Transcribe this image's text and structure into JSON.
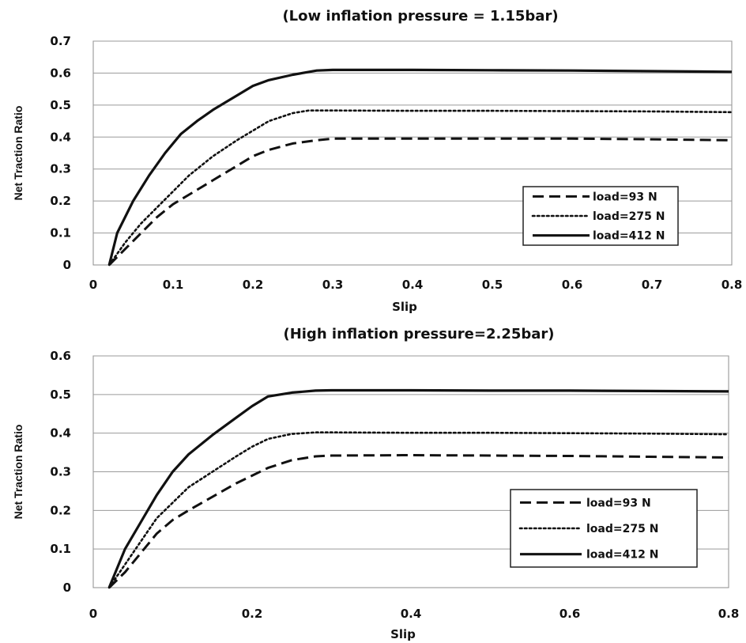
{
  "chart_data": [
    {
      "type": "line",
      "title": "(Low inflation pressure = 1.15bar)",
      "xlabel": "Slip",
      "ylabel": "Net Traction Ratio",
      "xlim": [
        0,
        0.8
      ],
      "ylim": [
        0,
        0.7
      ],
      "xticks": [
        "0",
        "0.1",
        "0.2",
        "0.3",
        "0.4",
        "0.5",
        "0.6",
        "0.7",
        "0.8"
      ],
      "yticks": [
        "0",
        "0.1",
        "0.2",
        "0.3",
        "0.4",
        "0.5",
        "0.6",
        "0.7"
      ],
      "grid": true,
      "legend_position": "bottom-right",
      "series": [
        {
          "name": "load=93 N",
          "style": "dashed",
          "x": [
            0.02,
            0.04,
            0.06,
            0.08,
            0.1,
            0.12,
            0.15,
            0.18,
            0.2,
            0.22,
            0.25,
            0.28,
            0.3,
            0.4,
            0.5,
            0.6,
            0.7,
            0.8
          ],
          "y": [
            0,
            0.05,
            0.1,
            0.15,
            0.19,
            0.22,
            0.265,
            0.31,
            0.34,
            0.36,
            0.38,
            0.39,
            0.395,
            0.395,
            0.395,
            0.395,
            0.393,
            0.39
          ]
        },
        {
          "name": "load=275 N",
          "style": "dotted",
          "x": [
            0.02,
            0.04,
            0.06,
            0.08,
            0.1,
            0.12,
            0.15,
            0.18,
            0.2,
            0.22,
            0.25,
            0.27,
            0.3,
            0.4,
            0.5,
            0.6,
            0.7,
            0.8
          ],
          "y": [
            0,
            0.07,
            0.13,
            0.18,
            0.23,
            0.28,
            0.34,
            0.39,
            0.42,
            0.45,
            0.475,
            0.483,
            0.483,
            0.482,
            0.482,
            0.481,
            0.48,
            0.478
          ]
        },
        {
          "name": "load=412 N",
          "style": "solid",
          "x": [
            0.02,
            0.03,
            0.05,
            0.07,
            0.09,
            0.11,
            0.13,
            0.15,
            0.18,
            0.2,
            0.22,
            0.25,
            0.28,
            0.3,
            0.4,
            0.5,
            0.6,
            0.7,
            0.8
          ],
          "y": [
            0,
            0.1,
            0.2,
            0.28,
            0.35,
            0.41,
            0.45,
            0.485,
            0.53,
            0.56,
            0.578,
            0.595,
            0.608,
            0.61,
            0.61,
            0.609,
            0.608,
            0.606,
            0.604
          ]
        }
      ]
    },
    {
      "type": "line",
      "title": "(High inflation pressure=2.25bar)",
      "xlabel": "Slip",
      "ylabel": "Net Traction Ratio",
      "xlim": [
        0,
        0.8
      ],
      "ylim": [
        0,
        0.6
      ],
      "xticks": [
        "0",
        "0.2",
        "0.4",
        "0.6",
        "0.8"
      ],
      "yticks": [
        "0",
        "0.1",
        "0.2",
        "0.3",
        "0.4",
        "0.5",
        "0.6"
      ],
      "grid": true,
      "legend_position": "bottom-right",
      "series": [
        {
          "name": "load=93 N",
          "style": "dashed",
          "x": [
            0.02,
            0.04,
            0.06,
            0.08,
            0.1,
            0.12,
            0.15,
            0.18,
            0.2,
            0.22,
            0.25,
            0.28,
            0.3,
            0.4,
            0.5,
            0.6,
            0.7,
            0.8
          ],
          "y": [
            0,
            0.04,
            0.09,
            0.14,
            0.175,
            0.2,
            0.235,
            0.27,
            0.29,
            0.31,
            0.33,
            0.34,
            0.342,
            0.343,
            0.342,
            0.341,
            0.339,
            0.337
          ]
        },
        {
          "name": "load=275 N",
          "style": "dotted",
          "x": [
            0.02,
            0.04,
            0.06,
            0.08,
            0.1,
            0.12,
            0.15,
            0.18,
            0.2,
            0.22,
            0.25,
            0.28,
            0.3,
            0.4,
            0.5,
            0.6,
            0.7,
            0.8
          ],
          "y": [
            0,
            0.06,
            0.12,
            0.18,
            0.22,
            0.26,
            0.3,
            0.34,
            0.365,
            0.385,
            0.398,
            0.402,
            0.402,
            0.401,
            0.401,
            0.4,
            0.399,
            0.397
          ]
        },
        {
          "name": "load=412 N",
          "style": "solid",
          "x": [
            0.02,
            0.04,
            0.06,
            0.08,
            0.1,
            0.12,
            0.15,
            0.18,
            0.2,
            0.22,
            0.25,
            0.28,
            0.3,
            0.4,
            0.5,
            0.6,
            0.7,
            0.8
          ],
          "y": [
            0,
            0.1,
            0.17,
            0.24,
            0.3,
            0.345,
            0.395,
            0.44,
            0.47,
            0.495,
            0.505,
            0.51,
            0.511,
            0.511,
            0.51,
            0.51,
            0.509,
            0.508
          ]
        }
      ]
    }
  ]
}
